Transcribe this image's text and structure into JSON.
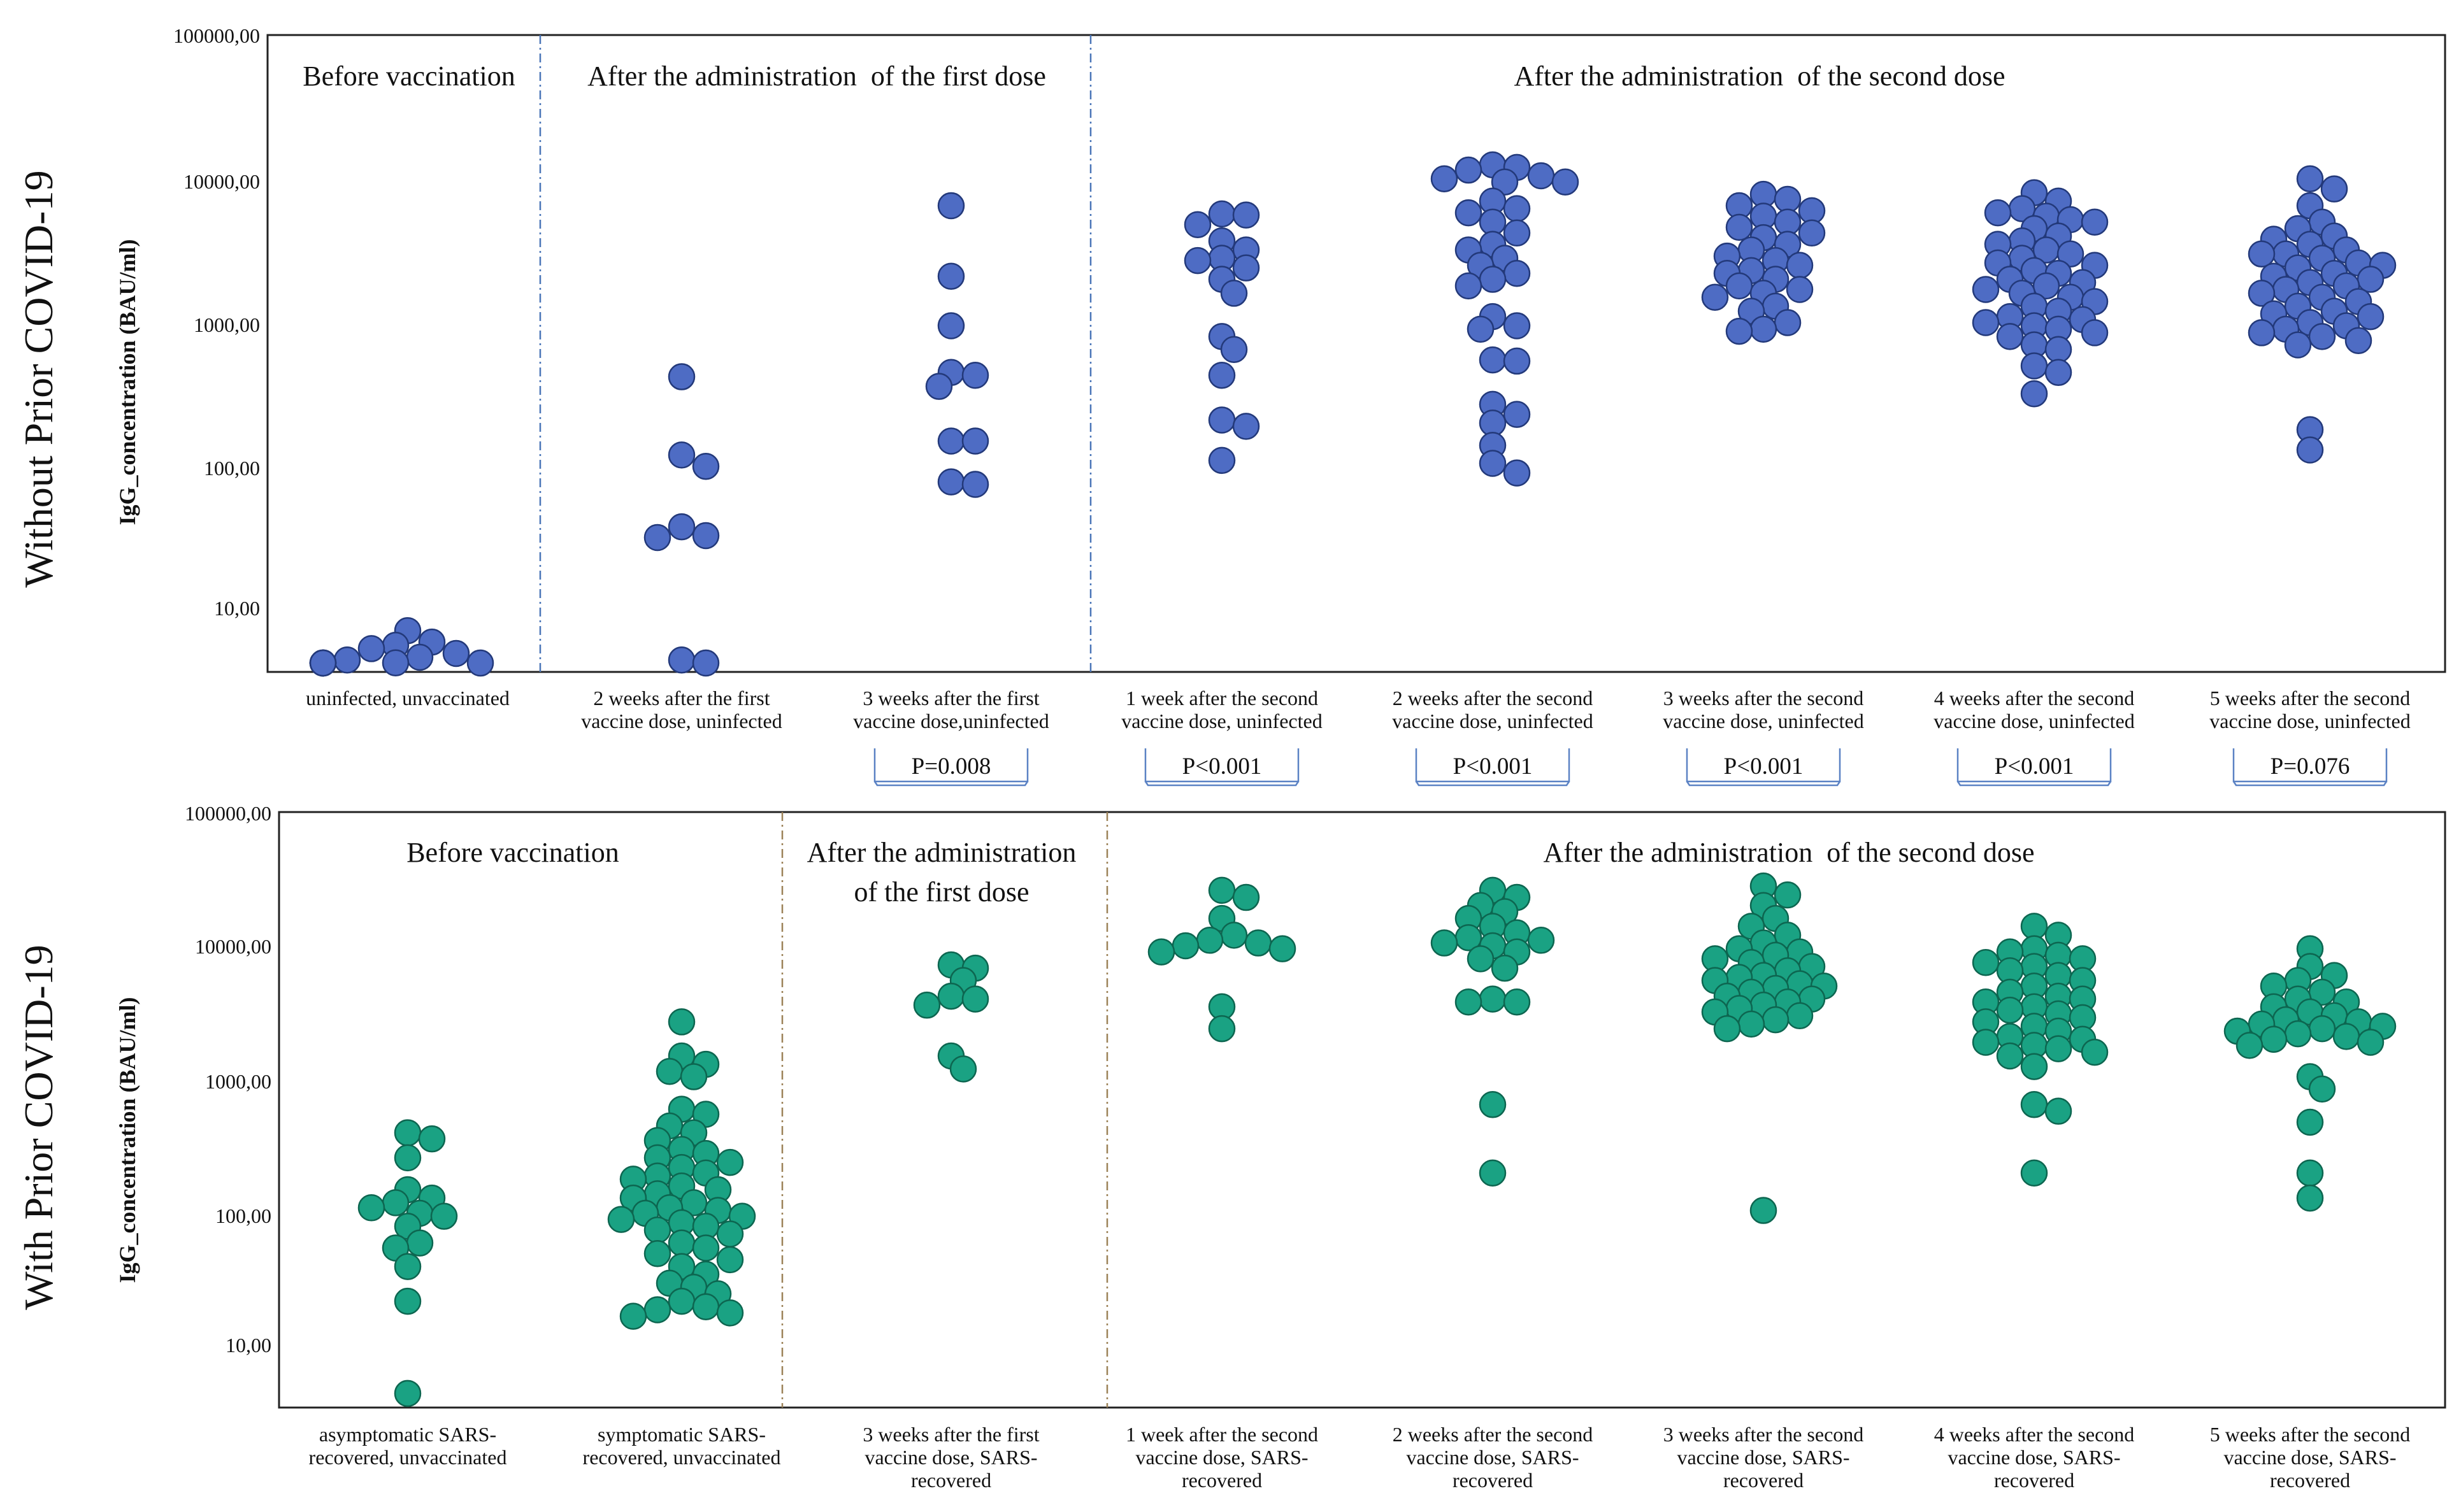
{
  "colors": {
    "blue": "#4e6cc4",
    "blue_edge": "#23397a",
    "teal": "#1aa283",
    "teal_edge": "#0d6650",
    "divider_blue": "#4a76b8",
    "divider_brown": "#9c8258",
    "pbox": "#5b82c4"
  },
  "chart_data": [
    {
      "type": "scatter",
      "scale": "log",
      "row_label": "Without Prior COVID-19",
      "ylabel": "IgG_concentration (BAU/ml)",
      "ylim": [
        3.5,
        100000
      ],
      "yticks": [
        "10,00",
        "100,00",
        "1000,00",
        "10000,00",
        "100000,00"
      ],
      "group_labels": [
        "Before vaccination",
        "After the administration  of the first dose",
        "After the administration  of the second dose"
      ],
      "categories": [
        [
          "uninfected, unvaccinated"
        ],
        [
          "2 weeks after the first",
          "vaccine dose, uninfected"
        ],
        [
          "3 weeks after the first",
          "vaccine dose,uninfected"
        ],
        [
          "1 week after the second",
          "vaccine dose, uninfected"
        ],
        [
          "2 weeks after the second",
          "vaccine dose, uninfected"
        ],
        [
          "3 weeks after the second",
          "vaccine dose, uninfected"
        ],
        [
          "4 weeks after the second",
          "vaccine dose, uninfected"
        ],
        [
          "5 weeks after the second",
          "vaccine dose, uninfected"
        ]
      ],
      "p_values": [
        "",
        "",
        "P=0.008",
        "P<0.001",
        "P<0.001",
        "P<0.001",
        "P<0.001",
        "P=0.076"
      ],
      "series": [
        [
          7.2,
          6.0,
          5.7,
          5.4,
          5.0,
          4.7,
          4.5,
          4.3,
          4.1,
          4.0,
          3.9,
          3.8,
          3.7,
          3.6
        ],
        [
          420,
          120,
          100,
          38,
          33,
          32,
          4.5,
          4.0
        ],
        [
          6500,
          2100,
          950,
          450,
          430,
          360,
          150,
          150,
          78,
          75
        ],
        [
          5700,
          5600,
          4800,
          3700,
          3200,
          2800,
          2700,
          2400,
          2000,
          1600,
          800,
          650,
          430,
          210,
          190,
          110
        ],
        [
          12500,
          12000,
          11500,
          10500,
          10000,
          9500,
          9500,
          7000,
          6200,
          5800,
          5000,
          4200,
          3500,
          3200,
          2800,
          2500,
          2200,
          2000,
          1800,
          1100,
          950,
          900,
          550,
          540,
          270,
          230,
          200,
          140,
          105,
          90
        ],
        [
          7800,
          7200,
          6500,
          6000,
          5500,
          5000,
          4600,
          4200,
          3900,
          3500,
          3200,
          2900,
          2700,
          2500,
          2300,
          2200,
          2000,
          1800,
          1700,
          1600,
          1500,
          1300,
          1200,
          1000,
          900,
          870
        ],
        [
          8000,
          7000,
          6200,
          5800,
          5500,
          5200,
          5000,
          4500,
          4000,
          3700,
          3500,
          3200,
          3000,
          2800,
          2600,
          2500,
          2300,
          2200,
          2000,
          1900,
          1800,
          1700,
          1600,
          1500,
          1400,
          1300,
          1200,
          1100,
          1050,
          1000,
          950,
          900,
          850,
          800,
          700,
          650,
          500,
          450,
          320
        ],
        [
          10000,
          8500,
          6500,
          5000,
          4500,
          4000,
          3800,
          3500,
          3200,
          3000,
          3000,
          2800,
          2600,
          2500,
          2400,
          2200,
          2100,
          2000,
          1900,
          1800,
          1700,
          1600,
          1500,
          1400,
          1300,
          1200,
          1150,
          1100,
          1000,
          950,
          900,
          850,
          800,
          750,
          700,
          180,
          130
        ]
      ]
    },
    {
      "type": "scatter",
      "scale": "log",
      "row_label": "With Prior COVID-19",
      "ylabel": "IgG_concentration (BAU/ml)",
      "ylim": [
        3.5,
        100000
      ],
      "yticks": [
        "10,00",
        "100,00",
        "1000,00",
        "10000,00",
        "100000,00"
      ],
      "group_labels": [
        "Before vaccination",
        "After the administration|of the first dose",
        "After the administration  of the second dose"
      ],
      "categories": [
        [
          "asymptomatic SARS-",
          "recovered, unvaccinated"
        ],
        [
          "symptomatic SARS-",
          "recovered, unvaccinated"
        ],
        [
          "3 weeks after the first",
          "vaccine dose, SARS-",
          "recovered"
        ],
        [
          "1 week after the second",
          "vaccine dose, SARS-",
          "recovered"
        ],
        [
          "2 weeks after the second",
          "vaccine dose, SARS-",
          "recovered"
        ],
        [
          "3 weeks after the second",
          "vaccine dose, SARS-",
          "recovered"
        ],
        [
          "4 weeks after the second",
          "vaccine dose, SARS-",
          "recovered"
        ],
        [
          "5 weeks after the second",
          "vaccine dose, SARS-",
          "recovered"
        ]
      ],
      "series": [
        [
          400,
          360,
          260,
          150,
          130,
          120,
          110,
          100,
          95,
          80,
          60,
          55,
          40,
          22,
          4.5
        ],
        [
          2700,
          1500,
          1300,
          1150,
          1050,
          600,
          550,
          450,
          400,
          350,
          300,
          280,
          260,
          240,
          220,
          200,
          190,
          180,
          160,
          150,
          140,
          130,
          120,
          110,
          105,
          100,
          95,
          90,
          85,
          80,
          75,
          70,
          60,
          55,
          50,
          45,
          40,
          35,
          30,
          28,
          25,
          22,
          20,
          19,
          18,
          17
        ],
        [
          7200,
          6800,
          5500,
          4200,
          4000,
          3600,
          1500,
          1200
        ],
        [
          26000,
          23000,
          16000,
          12000,
          11000,
          10500,
          10000,
          9500,
          9000,
          3500,
          2400
        ],
        [
          26000,
          23000,
          20000,
          18000,
          16000,
          14000,
          12500,
          11500,
          11000,
          10500,
          10000,
          9000,
          8000,
          6800,
          4000,
          3800,
          3800,
          650,
          200
        ],
        [
          28000,
          24000,
          20000,
          16000,
          14000,
          12000,
          10500,
          9500,
          9000,
          8500,
          8000,
          7500,
          7000,
          6500,
          6000,
          5800,
          5500,
          5200,
          5000,
          4800,
          4500,
          4200,
          4000,
          3800,
          3600,
          3400,
          3200,
          3000,
          2800,
          2600,
          2400,
          105
        ],
        [
          14000,
          12000,
          9500,
          9000,
          8500,
          8000,
          7500,
          7000,
          6500,
          6000,
          5500,
          5000,
          4500,
          4200,
          4000,
          3800,
          3500,
          3300,
          3100,
          2900,
          2700,
          2500,
          2300,
          2100,
          2000,
          1900,
          1800,
          1700,
          1600,
          1500,
          1250,
          650,
          580,
          200
        ],
        [
          9500,
          7000,
          6000,
          5500,
          5000,
          4500,
          4000,
          3800,
          3500,
          3200,
          3000,
          2800,
          2700,
          2600,
          2500,
          2400,
          2300,
          2200,
          2100,
          2000,
          1900,
          1800,
          1050,
          850,
          480,
          200,
          130
        ]
      ]
    }
  ]
}
